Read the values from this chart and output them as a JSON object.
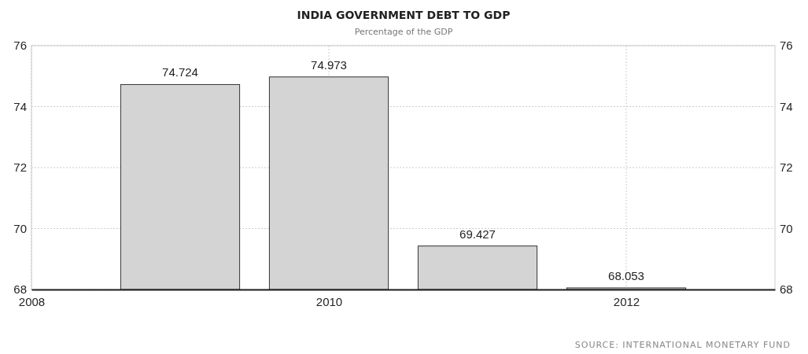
{
  "chart_data": {
    "type": "bar",
    "title": "INDIA GOVERNMENT DEBT TO GDP",
    "subtitle": "Percentage of the GDP",
    "x": [
      2009,
      2010,
      2011,
      2012
    ],
    "values": [
      74.724,
      74.973,
      69.427,
      68.053
    ],
    "color": "#d4d4d4",
    "xlim": [
      2008,
      2013
    ],
    "xticks": [
      2008,
      2010,
      2012
    ],
    "ylim": [
      68,
      76
    ],
    "yticks": [
      68,
      70,
      72,
      74,
      76
    ],
    "y2lim": [
      68,
      76
    ],
    "y2ticks": [
      68,
      70,
      72,
      74,
      76
    ],
    "grid": true,
    "data_labels": true,
    "annotations": [
      "SOURCE: INTERNATIONAL MONETARY FUND"
    ]
  }
}
